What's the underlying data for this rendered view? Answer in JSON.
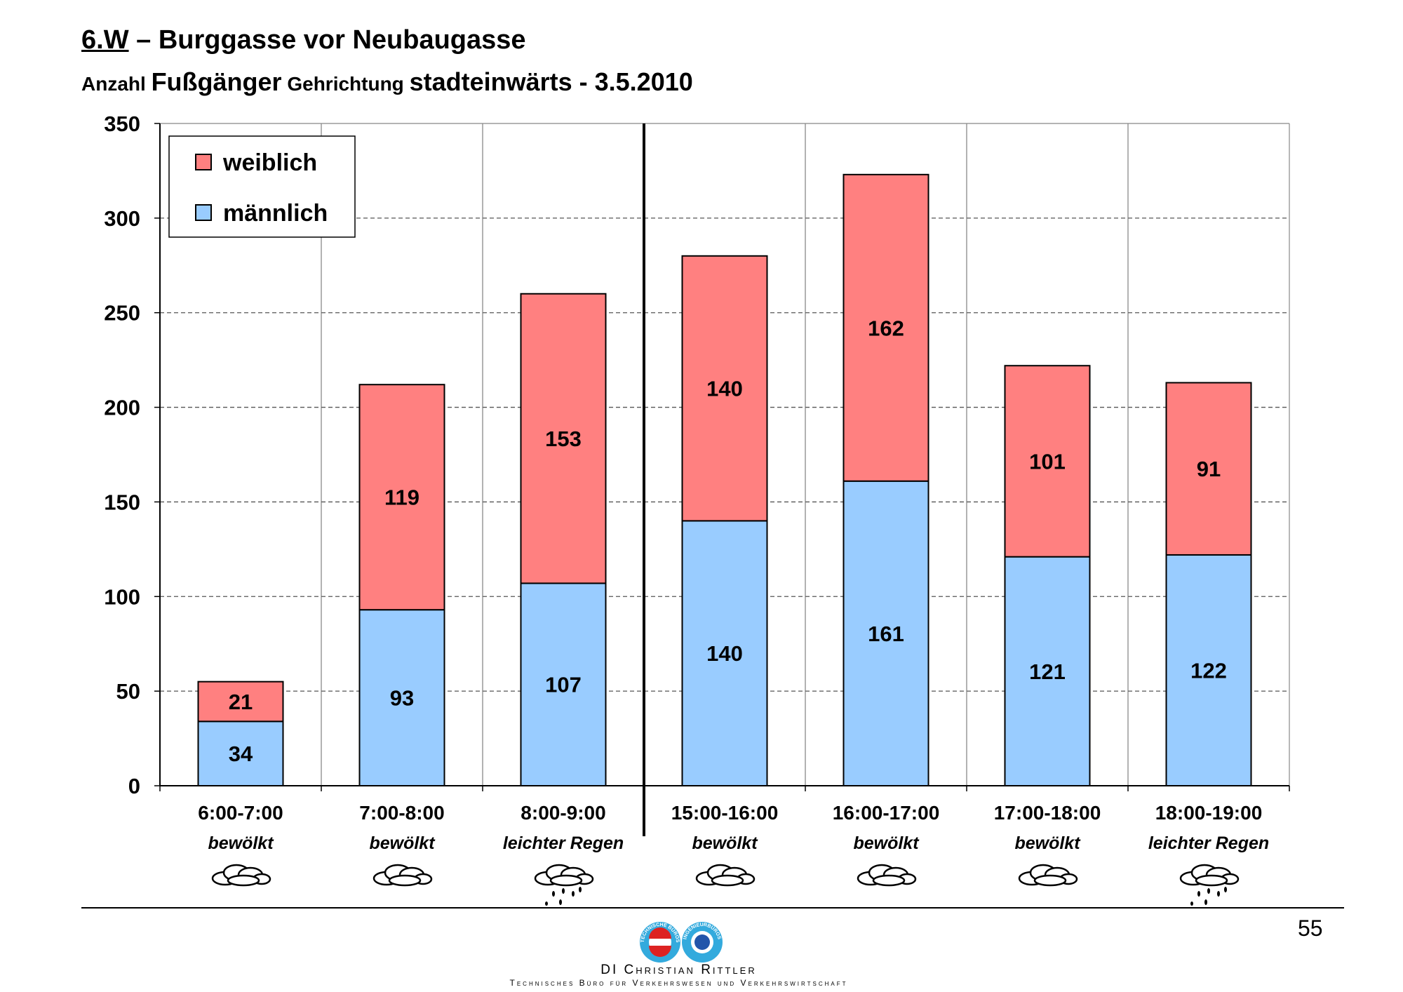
{
  "header": {
    "code": "6.W",
    "dash": " – ",
    "location": "Burggasse vor Neubaugasse",
    "sub1": "Anzahl ",
    "sub2": "Fußgänger",
    "sub3": " Gehrichtung ",
    "sub4": "stadteinwärts - 3.5.2010"
  },
  "chart_data": {
    "type": "bar",
    "stacked": true,
    "title": "Anzahl Fußgänger Gehrichtung stadteinwärts - 3.5.2010",
    "categories": [
      "6:00-7:00",
      "7:00-8:00",
      "8:00-9:00",
      "15:00-16:00",
      "16:00-17:00",
      "17:00-18:00",
      "18:00-19:00"
    ],
    "weather": [
      "bewölkt",
      "bewölkt",
      "leichter Regen",
      "bewölkt",
      "bewölkt",
      "bewölkt",
      "leichter Regen"
    ],
    "weather_icons": [
      "cloud-icon",
      "cloud-icon",
      "rain-cloud-icon",
      "cloud-icon",
      "cloud-icon",
      "cloud-icon",
      "rain-cloud-icon"
    ],
    "series": [
      {
        "name": "männlich",
        "color": "#99ccff",
        "values": [
          34,
          93,
          107,
          140,
          161,
          121,
          122
        ]
      },
      {
        "name": "weiblich",
        "color": "#ff8080",
        "values": [
          21,
          119,
          153,
          140,
          162,
          101,
          91
        ]
      }
    ],
    "legend_order": [
      "weiblich",
      "männlich"
    ],
    "legend_position": "top-left",
    "ylim": [
      0,
      350
    ],
    "yticks": [
      "0",
      "50",
      "100",
      "150",
      "200",
      "250",
      "300",
      "350"
    ],
    "grid": true,
    "separator_after_category": 3
  },
  "footer": {
    "page_number": "55",
    "company": "DI Christian Rittler",
    "company_sub": "Technisches Büro für Verkehrswesen und Verkehrswirtschaft",
    "logo_left_text": "TECHNISCHE BÜROS",
    "logo_right_text": "INGENIEURBÜROS"
  }
}
